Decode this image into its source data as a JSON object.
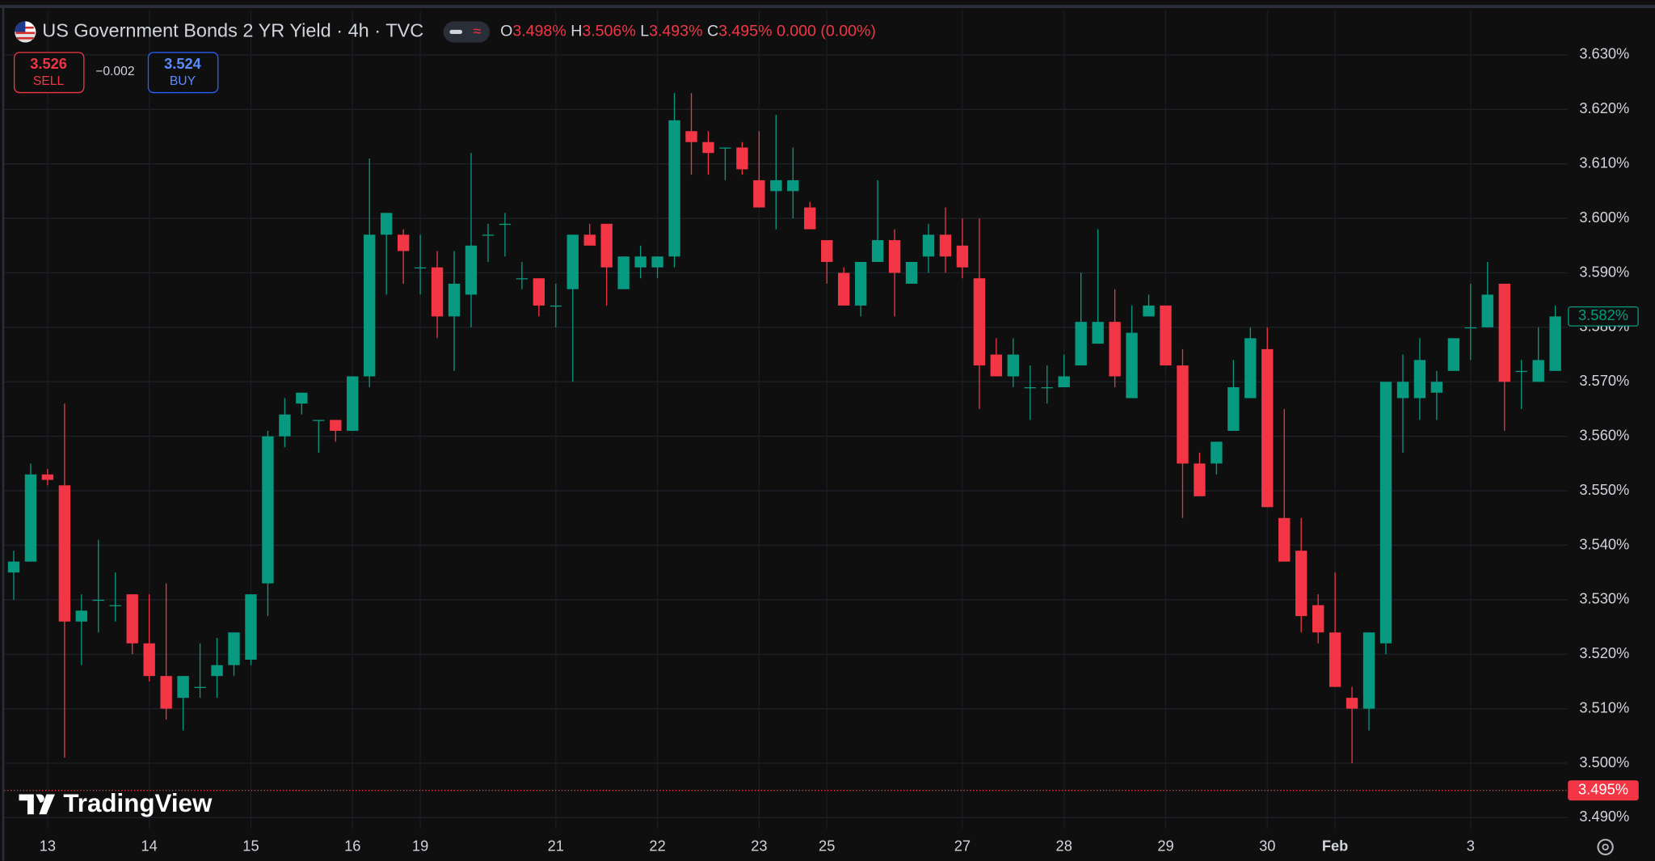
{
  "header": {
    "title": "US Government Bonds 2 YR Yield · 4h · TVC",
    "ohlc": [
      {
        "key": "O",
        "value": "3.498%"
      },
      {
        "key": "H",
        "value": "3.506%"
      },
      {
        "key": "L",
        "value": "3.493%"
      },
      {
        "key": "C",
        "value": "3.495%"
      }
    ],
    "change": "0.000 (0.00%)"
  },
  "trade": {
    "sell_price": "3.526",
    "sell_label": "SELL",
    "spread": "−0.002",
    "buy_price": "3.524",
    "buy_label": "BUY"
  },
  "watermark": "TradingView",
  "chart_data": {
    "type": "candlestick",
    "up_color": "#089981",
    "down_color": "#f23645",
    "grid": true,
    "categories": [
      null,
      null,
      "13",
      null,
      null,
      null,
      null,
      null,
      "14",
      null,
      null,
      null,
      null,
      null,
      "15",
      null,
      null,
      null,
      null,
      null,
      "16",
      null,
      null,
      null,
      "19",
      null,
      null,
      null,
      null,
      null,
      null,
      null,
      "21",
      null,
      null,
      null,
      null,
      null,
      "22",
      null,
      null,
      null,
      null,
      null,
      "23",
      null,
      null,
      null,
      "25",
      null,
      null,
      null,
      null,
      null,
      null,
      null,
      "27",
      null,
      null,
      null,
      null,
      null,
      "28",
      null,
      null,
      null,
      null,
      null,
      "29",
      null,
      null,
      null,
      null,
      null,
      "30",
      null,
      null,
      null,
      "Feb",
      null,
      null,
      null,
      null,
      null,
      null,
      null,
      "3",
      null,
      null,
      null,
      null,
      null
    ],
    "open": [
      3.535,
      3.537,
      3.553,
      3.551,
      3.526,
      3.53,
      3.529,
      3.531,
      3.522,
      3.516,
      3.512,
      3.514,
      3.516,
      3.518,
      3.519,
      3.533,
      3.56,
      3.566,
      3.563,
      3.563,
      3.561,
      3.571,
      3.597,
      3.597,
      3.591,
      3.591,
      3.582,
      3.586,
      3.597,
      3.599,
      3.589,
      3.589,
      3.584,
      3.587,
      3.597,
      3.599,
      3.587,
      3.591,
      3.591,
      3.593,
      3.616,
      3.614,
      3.613,
      3.613,
      3.607,
      3.605,
      3.605,
      3.602,
      3.596,
      3.59,
      3.584,
      3.592,
      3.596,
      3.588,
      3.593,
      3.597,
      3.595,
      3.589,
      3.575,
      3.571,
      3.569,
      3.569,
      3.569,
      3.573,
      3.577,
      3.581,
      3.567,
      3.582,
      3.584,
      3.573,
      3.555,
      3.555,
      3.561,
      3.567,
      3.576,
      3.545,
      3.539,
      3.529,
      3.524,
      3.512,
      3.51,
      3.522,
      3.567,
      3.567,
      3.568,
      3.572,
      3.58,
      3.58,
      3.588,
      3.572,
      3.57,
      3.572
    ],
    "high": [
      3.539,
      3.555,
      3.554,
      3.566,
      3.531,
      3.541,
      3.535,
      3.531,
      3.531,
      3.533,
      3.516,
      3.522,
      3.523,
      3.524,
      3.531,
      3.561,
      3.567,
      3.568,
      3.563,
      3.563,
      3.571,
      3.611,
      3.601,
      3.598,
      3.597,
      3.594,
      3.594,
      3.612,
      3.599,
      3.601,
      3.592,
      3.589,
      3.588,
      3.597,
      3.599,
      3.599,
      3.593,
      3.595,
      3.593,
      3.623,
      3.623,
      3.616,
      3.613,
      3.614,
      3.616,
      3.619,
      3.613,
      3.603,
      3.596,
      3.591,
      3.592,
      3.607,
      3.598,
      3.592,
      3.599,
      3.602,
      3.6,
      3.6,
      3.578,
      3.578,
      3.573,
      3.573,
      3.575,
      3.59,
      3.598,
      3.587,
      3.584,
      3.586,
      3.584,
      3.576,
      3.557,
      3.559,
      3.574,
      3.58,
      3.58,
      3.565,
      3.545,
      3.531,
      3.535,
      3.514,
      3.524,
      3.57,
      3.575,
      3.578,
      3.572,
      3.578,
      3.588,
      3.592,
      3.588,
      3.574,
      3.58,
      3.584
    ],
    "low": [
      3.53,
      3.537,
      3.551,
      3.501,
      3.518,
      3.524,
      3.526,
      3.52,
      3.515,
      3.508,
      3.506,
      3.512,
      3.512,
      3.516,
      3.518,
      3.527,
      3.558,
      3.564,
      3.557,
      3.559,
      3.561,
      3.569,
      3.586,
      3.588,
      3.586,
      3.578,
      3.572,
      3.58,
      3.592,
      3.593,
      3.587,
      3.582,
      3.58,
      3.57,
      3.595,
      3.584,
      3.587,
      3.589,
      3.589,
      3.591,
      3.608,
      3.608,
      3.607,
      3.608,
      3.602,
      3.598,
      3.6,
      3.598,
      3.588,
      3.584,
      3.582,
      3.592,
      3.582,
      3.588,
      3.59,
      3.59,
      3.589,
      3.565,
      3.571,
      3.569,
      3.563,
      3.566,
      3.569,
      3.573,
      3.577,
      3.569,
      3.567,
      3.582,
      3.573,
      3.545,
      3.549,
      3.553,
      3.561,
      3.567,
      3.547,
      3.537,
      3.524,
      3.522,
      3.514,
      3.5,
      3.506,
      3.52,
      3.557,
      3.563,
      3.563,
      3.572,
      3.574,
      3.58,
      3.561,
      3.565,
      3.57,
      3.572
    ],
    "close": [
      3.537,
      3.553,
      3.552,
      3.526,
      3.528,
      3.53,
      3.529,
      3.522,
      3.516,
      3.51,
      3.516,
      3.514,
      3.518,
      3.524,
      3.531,
      3.56,
      3.564,
      3.568,
      3.563,
      3.561,
      3.571,
      3.597,
      3.601,
      3.594,
      3.591,
      3.582,
      3.588,
      3.595,
      3.597,
      3.599,
      3.589,
      3.584,
      3.584,
      3.597,
      3.595,
      3.591,
      3.593,
      3.593,
      3.593,
      3.618,
      3.614,
      3.612,
      3.613,
      3.609,
      3.602,
      3.607,
      3.607,
      3.598,
      3.592,
      3.584,
      3.592,
      3.596,
      3.59,
      3.592,
      3.597,
      3.593,
      3.591,
      3.573,
      3.571,
      3.575,
      3.569,
      3.569,
      3.571,
      3.581,
      3.581,
      3.571,
      3.579,
      3.584,
      3.573,
      3.555,
      3.549,
      3.559,
      3.569,
      3.578,
      3.547,
      3.537,
      3.527,
      3.524,
      3.514,
      3.51,
      3.524,
      3.57,
      3.57,
      3.574,
      3.57,
      3.578,
      3.58,
      3.586,
      3.57,
      3.572,
      3.574,
      3.582
    ],
    "ylim": [
      3.4879,
      3.6381
    ],
    "yticks": [
      {
        "value": 3.49,
        "label": "3.490%"
      },
      {
        "value": 3.5,
        "label": "3.500%"
      },
      {
        "value": 3.51,
        "label": "3.510%"
      },
      {
        "value": 3.52,
        "label": "3.520%"
      },
      {
        "value": 3.53,
        "label": "3.530%"
      },
      {
        "value": 3.54,
        "label": "3.540%"
      },
      {
        "value": 3.55,
        "label": "3.550%"
      },
      {
        "value": 3.56,
        "label": "3.560%"
      },
      {
        "value": 3.57,
        "label": "3.570%"
      },
      {
        "value": 3.58,
        "label": "3.580%"
      },
      {
        "value": 3.59,
        "label": "3.590%"
      },
      {
        "value": 3.6,
        "label": "3.600%"
      },
      {
        "value": 3.61,
        "label": "3.610%"
      },
      {
        "value": 3.62,
        "label": "3.620%"
      },
      {
        "value": 3.63,
        "label": "3.630%"
      }
    ],
    "price_lines": [
      {
        "value": 3.582,
        "label": "3.582%",
        "color": "#089981"
      },
      {
        "value": 3.495,
        "label": "3.495%",
        "color": "#f23645"
      }
    ]
  }
}
